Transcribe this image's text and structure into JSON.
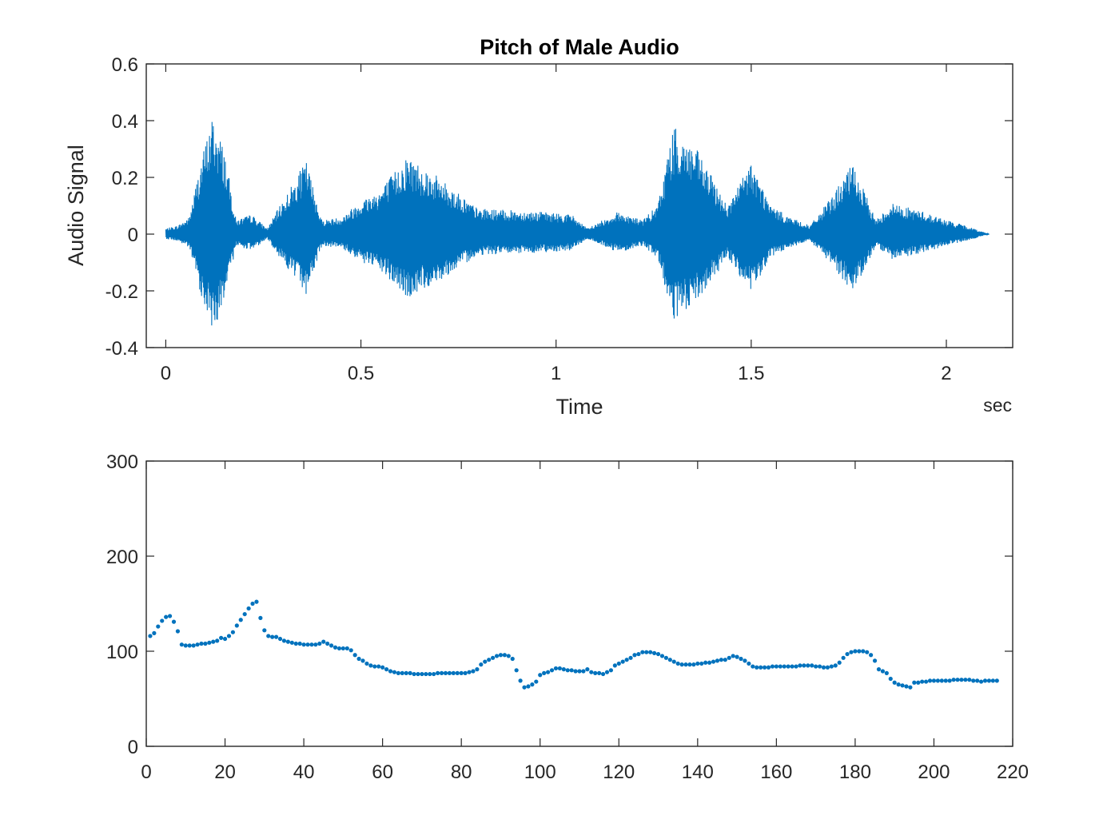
{
  "chart_data": [
    {
      "type": "line",
      "title": "Pitch of Male Audio",
      "xlabel": "Time",
      "ylabel": "Audio Signal",
      "x_unit": "sec",
      "xlim": [
        -0.05,
        2.17
      ],
      "ylim": [
        -0.4,
        0.6
      ],
      "xticks": [
        "0",
        "0.5",
        "1",
        "1.5",
        "2"
      ],
      "yticks": [
        "-0.4",
        "-0.2",
        "0",
        "0.2",
        "0.4",
        "0.6"
      ],
      "grid": false,
      "color": "#0072BD",
      "duration_sec": 2.11,
      "envelope": [
        {
          "t": 0.0,
          "a": 0.02
        },
        {
          "t": 0.03,
          "a": 0.03
        },
        {
          "t": 0.06,
          "a": 0.06
        },
        {
          "t": 0.09,
          "a": 0.26
        },
        {
          "t": 0.12,
          "a": 0.42
        },
        {
          "t": 0.15,
          "a": 0.3
        },
        {
          "t": 0.18,
          "a": 0.05
        },
        {
          "t": 0.22,
          "a": 0.07
        },
        {
          "t": 0.26,
          "a": 0.02
        },
        {
          "t": 0.3,
          "a": 0.12
        },
        {
          "t": 0.36,
          "a": 0.26
        },
        {
          "t": 0.4,
          "a": 0.05
        },
        {
          "t": 0.45,
          "a": 0.06
        },
        {
          "t": 0.5,
          "a": 0.12
        },
        {
          "t": 0.55,
          "a": 0.16
        },
        {
          "t": 0.62,
          "a": 0.28
        },
        {
          "t": 0.7,
          "a": 0.2
        },
        {
          "t": 0.8,
          "a": 0.09
        },
        {
          "t": 0.95,
          "a": 0.08
        },
        {
          "t": 1.04,
          "a": 0.07
        },
        {
          "t": 1.08,
          "a": 0.02
        },
        {
          "t": 1.16,
          "a": 0.08
        },
        {
          "t": 1.22,
          "a": 0.05
        },
        {
          "t": 1.26,
          "a": 0.1
        },
        {
          "t": 1.3,
          "a": 0.38
        },
        {
          "t": 1.36,
          "a": 0.3
        },
        {
          "t": 1.44,
          "a": 0.1
        },
        {
          "t": 1.5,
          "a": 0.26
        },
        {
          "t": 1.55,
          "a": 0.1
        },
        {
          "t": 1.6,
          "a": 0.06
        },
        {
          "t": 1.65,
          "a": 0.03
        },
        {
          "t": 1.7,
          "a": 0.12
        },
        {
          "t": 1.76,
          "a": 0.25
        },
        {
          "t": 1.82,
          "a": 0.05
        },
        {
          "t": 1.86,
          "a": 0.11
        },
        {
          "t": 1.94,
          "a": 0.08
        },
        {
          "t": 2.0,
          "a": 0.05
        },
        {
          "t": 2.05,
          "a": 0.03
        },
        {
          "t": 2.11,
          "a": 0.0
        }
      ]
    },
    {
      "type": "scatter",
      "xlim": [
        0,
        220
      ],
      "ylim": [
        0,
        300
      ],
      "xticks": [
        "0",
        "20",
        "40",
        "60",
        "80",
        "100",
        "120",
        "140",
        "160",
        "180",
        "200",
        "220"
      ],
      "yticks": [
        "0",
        "100",
        "200",
        "300"
      ],
      "grid": false,
      "color": "#0072BD",
      "y": [
        116,
        119,
        126,
        132,
        136,
        137,
        131,
        121,
        107,
        106,
        106,
        106,
        107,
        108,
        108,
        109,
        110,
        111,
        114,
        113,
        116,
        120,
        127,
        133,
        139,
        145,
        150,
        152,
        135,
        122,
        116,
        115,
        115,
        113,
        111,
        110,
        109,
        108,
        108,
        107,
        107,
        107,
        107,
        108,
        110,
        108,
        106,
        104,
        103,
        103,
        103,
        101,
        96,
        92,
        90,
        87,
        85,
        84,
        84,
        83,
        81,
        79,
        78,
        77,
        77,
        77,
        77,
        76,
        76,
        76,
        76,
        76,
        76,
        77,
        77,
        77,
        77,
        77,
        77,
        77,
        77,
        78,
        79,
        81,
        86,
        89,
        91,
        93,
        95,
        96,
        96,
        95,
        92,
        80,
        69,
        62,
        63,
        65,
        68,
        75,
        77,
        78,
        80,
        82,
        82,
        81,
        80,
        80,
        79,
        79,
        79,
        81,
        78,
        77,
        77,
        76,
        78,
        80,
        85,
        87,
        89,
        91,
        93,
        96,
        97,
        99,
        99,
        99,
        98,
        97,
        95,
        93,
        91,
        89,
        87,
        86,
        86,
        86,
        86,
        87,
        87,
        88,
        88,
        89,
        90,
        91,
        91,
        93,
        95,
        94,
        92,
        90,
        87,
        84,
        83,
        83,
        83,
        83,
        84,
        84,
        84,
        84,
        84,
        84,
        84,
        85,
        85,
        85,
        85,
        84,
        84,
        83,
        83,
        84,
        85,
        88,
        93,
        97,
        99,
        100,
        100,
        100,
        99,
        96,
        90,
        81,
        79,
        77,
        71,
        67,
        65,
        64,
        63,
        62,
        67,
        67,
        68,
        68,
        69,
        69,
        69,
        69,
        69,
        69,
        70,
        70,
        70,
        70,
        70,
        69,
        69,
        68,
        69,
        69,
        69,
        69
      ]
    }
  ]
}
